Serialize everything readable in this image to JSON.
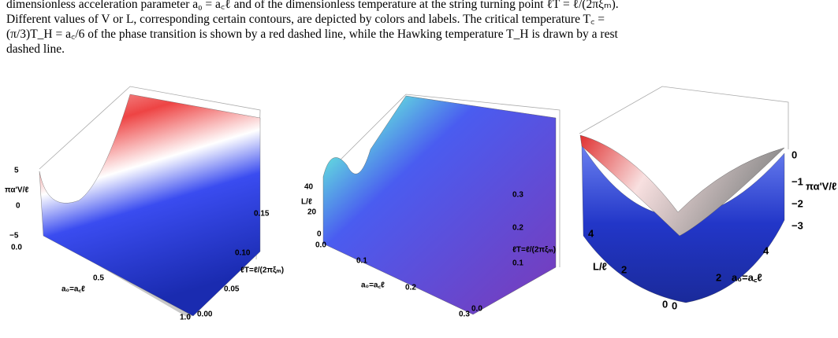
{
  "caption": {
    "lines": [
      "dimensionless acceleration parameter a₀ = a꜀ℓ and of the dimensionless temperature at the string turning point ℓT = ℓ/(2πξₘ).",
      "Different values of V or L, corresponding certain contours, are depicted by colors and labels. The critical temperature T꜀ =",
      "(π/3)T_H = a꜀/6 of the phase transition is shown by a red dashed line, while the Hawking temperature T_H is drawn by a rest",
      "dashed line."
    ]
  },
  "figures": [
    {
      "z_label": "πα'V/ℓ",
      "z_ticks": [
        "5",
        "0",
        "−5"
      ],
      "x_label": "a₀=a꜀ℓ",
      "x_ticks": [
        "0.0",
        "0.5",
        "1.0"
      ],
      "y_label": "ℓT=ℓ/(2πξₘ)",
      "y_ticks": [
        "0.00",
        "0.05",
        "0.10",
        "0.15"
      ]
    },
    {
      "z_label": "L/ℓ",
      "z_ticks": [
        "40",
        "20",
        "0"
      ],
      "x_label": "a₀=a꜀ℓ",
      "x_ticks": [
        "0.0",
        "0.1",
        "0.2",
        "0.3"
      ],
      "y_label": "ℓT=ℓ/(2πξₘ)",
      "y_ticks": [
        "0.0",
        "0.1",
        "0.2",
        "0.3"
      ]
    },
    {
      "z_label": "πα'V/ℓ",
      "z_ticks": [
        "0",
        "−1",
        "−2",
        "−3"
      ],
      "x_label": "L/ℓ",
      "x_ticks": [
        "0",
        "2",
        "4"
      ],
      "y_label": "a₀=a꜀ℓ",
      "y_ticks": [
        "0",
        "2",
        "4"
      ]
    }
  ]
}
